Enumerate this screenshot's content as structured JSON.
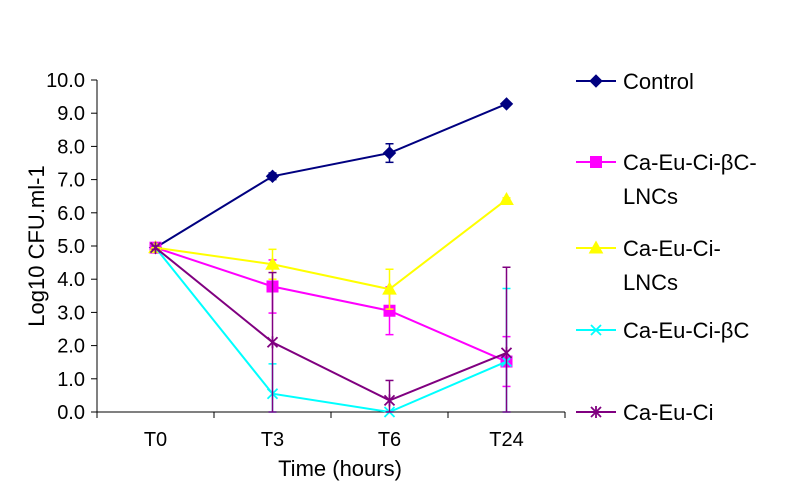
{
  "chart_data": {
    "type": "line",
    "xlabel": "Time (hours)",
    "ylabel": "Log10 CFU.ml-1",
    "categories": [
      "T0",
      "T3",
      "T6",
      "T24"
    ],
    "ylim": [
      0,
      10
    ],
    "yticks": [
      "0.0",
      "1.0",
      "2.0",
      "3.0",
      "4.0",
      "5.0",
      "6.0",
      "7.0",
      "8.0",
      "9.0",
      "10.0"
    ],
    "grid": false,
    "legend_position": "right",
    "series": [
      {
        "name": "Control",
        "name_lines": [
          "Control"
        ],
        "color": "#000080",
        "marker": "diamond",
        "values": [
          4.95,
          7.1,
          7.8,
          9.28
        ],
        "errors": [
          0.1,
          0.1,
          0.28,
          0.05
        ]
      },
      {
        "name": "Ca-Eu-Ci-βC-LNCs",
        "name_lines": [
          "Ca-Eu-Ci-βC-",
          "LNCs"
        ],
        "color": "#FF00FF",
        "marker": "square",
        "values": [
          4.95,
          3.78,
          3.05,
          1.52
        ],
        "errors": [
          0.05,
          0.8,
          0.72,
          0.75
        ]
      },
      {
        "name": "Ca-Eu-Ci-LNCs",
        "name_lines": [
          "Ca-Eu-Ci-",
          "LNCs"
        ],
        "color": "#FFFF00",
        "marker": "triangle",
        "values": [
          4.95,
          4.45,
          3.7,
          6.4
        ],
        "errors": [
          0.05,
          0.45,
          0.6,
          0.05
        ]
      },
      {
        "name": "Ca-Eu-Ci-βC",
        "name_lines": [
          "Ca-Eu-Ci-βC"
        ],
        "color": "#00FFFF",
        "marker": "x",
        "values": [
          4.95,
          0.55,
          0.0,
          1.52
        ],
        "errors": [
          0.05,
          0.9,
          0.0,
          2.2
        ]
      },
      {
        "name": "Ca-Eu-Ci",
        "name_lines": [
          "Ca-Eu-Ci"
        ],
        "color": "#800080",
        "marker": "star",
        "values": [
          4.95,
          2.1,
          0.35,
          1.78
        ],
        "errors": [
          0.05,
          2.1,
          0.6,
          2.58
        ]
      }
    ]
  }
}
